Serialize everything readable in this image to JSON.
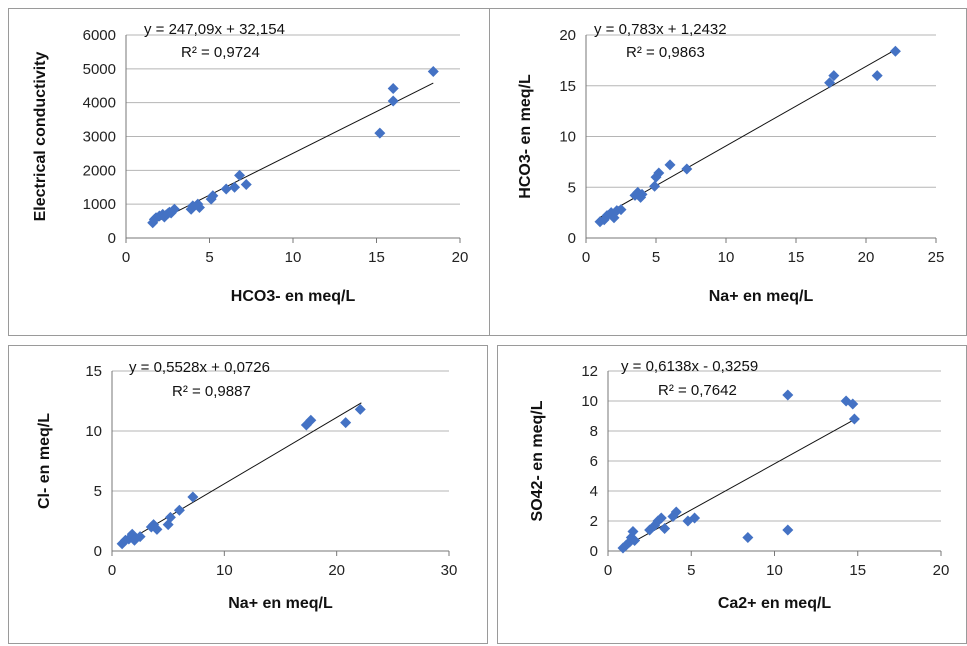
{
  "colors": {
    "marker": "#4472c4",
    "trendline": "#111111",
    "grid": "#b5b5b5"
  },
  "chart_data": [
    {
      "type": "scatter",
      "xlabel": "HCO3- en meq/L",
      "ylabel": "Electrical conductivity",
      "equation": "y = 247,09x + 32,154",
      "r2": "R² = 0,9724",
      "xlim": [
        0,
        20
      ],
      "xticks": [
        0,
        5,
        10,
        15,
        20
      ],
      "ylim": [
        0,
        6000
      ],
      "yticks": [
        0,
        1000,
        2000,
        3000,
        4000,
        5000,
        6000
      ],
      "xtick_labels": [
        "0",
        "5",
        "10",
        "15",
        "20"
      ],
      "ytick_labels": [
        "0",
        "1000",
        "2000",
        "3000",
        "4000",
        "5000",
        "6000"
      ],
      "grid": true,
      "trendline": {
        "slope": 247.09,
        "intercept": 32.154,
        "x_range": [
          1.6,
          18.4
        ]
      },
      "points": [
        [
          1.6,
          450
        ],
        [
          1.7,
          550
        ],
        [
          1.8,
          600
        ],
        [
          2.0,
          650
        ],
        [
          2.2,
          700
        ],
        [
          2.4,
          680
        ],
        [
          2.5,
          720
        ],
        [
          2.6,
          760
        ],
        [
          2.8,
          800
        ],
        [
          2.9,
          850
        ],
        [
          2.3,
          620
        ],
        [
          2.7,
          740
        ],
        [
          3.9,
          850
        ],
        [
          4.0,
          950
        ],
        [
          4.3,
          1000
        ],
        [
          4.4,
          900
        ],
        [
          5.1,
          1150
        ],
        [
          5.2,
          1250
        ],
        [
          6.0,
          1450
        ],
        [
          6.5,
          1500
        ],
        [
          6.8,
          1850
        ],
        [
          7.2,
          1580
        ],
        [
          15.2,
          3100
        ],
        [
          16.0,
          4050
        ],
        [
          16.0,
          4420
        ],
        [
          18.4,
          4920
        ]
      ]
    },
    {
      "type": "scatter",
      "xlabel": "Na+ en meq/L",
      "ylabel": "HCO3- en meq/L",
      "equation": "y = 0,783x + 1,2432",
      "r2": "R² = 0,9863",
      "xlim": [
        0,
        25
      ],
      "xticks": [
        0,
        5,
        10,
        15,
        20,
        25
      ],
      "ylim": [
        0,
        20
      ],
      "yticks": [
        0,
        5,
        10,
        15,
        20
      ],
      "xtick_labels": [
        "0",
        "5",
        "10",
        "15",
        "20",
        "25"
      ],
      "ytick_labels": [
        "0",
        "5",
        "10",
        "15",
        "20"
      ],
      "grid": true,
      "trendline": {
        "slope": 0.783,
        "intercept": 1.2432,
        "x_range": [
          1.0,
          22.2
        ]
      },
      "points": [
        [
          1.0,
          1.6
        ],
        [
          1.3,
          1.8
        ],
        [
          1.5,
          2.2
        ],
        [
          1.8,
          2.5
        ],
        [
          2.0,
          2.0
        ],
        [
          2.2,
          2.7
        ],
        [
          2.5,
          2.8
        ],
        [
          3.5,
          4.2
        ],
        [
          3.7,
          4.5
        ],
        [
          3.9,
          4.0
        ],
        [
          4.0,
          4.3
        ],
        [
          4.9,
          5.1
        ],
        [
          5.0,
          6.0
        ],
        [
          5.2,
          6.4
        ],
        [
          6.0,
          7.2
        ],
        [
          7.2,
          6.8
        ],
        [
          17.4,
          15.3
        ],
        [
          17.7,
          16.0
        ],
        [
          20.8,
          16.0
        ],
        [
          22.1,
          18.4
        ]
      ]
    },
    {
      "type": "scatter",
      "xlabel": "Na+ en meq/L",
      "ylabel": "Cl- en meq/L",
      "equation": "y = 0,5528x + 0,0726",
      "r2": "R² = 0,9887",
      "xlim": [
        0,
        30
      ],
      "xticks": [
        0,
        10,
        20,
        30
      ],
      "ylim": [
        0,
        15
      ],
      "yticks": [
        0,
        5,
        10,
        15
      ],
      "xtick_labels": [
        "0",
        "10",
        "20",
        "30"
      ],
      "ytick_labels": [
        "0",
        "5",
        "10",
        "15"
      ],
      "grid": true,
      "trendline": {
        "slope": 0.5528,
        "intercept": 0.0726,
        "x_range": [
          0.8,
          22.2
        ]
      },
      "points": [
        [
          0.9,
          0.6
        ],
        [
          1.2,
          0.9
        ],
        [
          1.5,
          1.0
        ],
        [
          1.8,
          1.4
        ],
        [
          2.0,
          0.9
        ],
        [
          2.5,
          1.2
        ],
        [
          3.5,
          2.0
        ],
        [
          3.7,
          2.2
        ],
        [
          4.0,
          1.8
        ],
        [
          5.0,
          2.2
        ],
        [
          5.2,
          2.8
        ],
        [
          6.0,
          3.4
        ],
        [
          7.2,
          4.5
        ],
        [
          17.3,
          10.5
        ],
        [
          17.7,
          10.9
        ],
        [
          20.8,
          10.7
        ],
        [
          22.1,
          11.8
        ]
      ]
    },
    {
      "type": "scatter",
      "xlabel": "Ca2+ en meq/L",
      "ylabel": "SO42- en meq/L",
      "equation": "y = 0,6138x - 0,3259",
      "r2": "R² = 0,7642",
      "xlim": [
        0,
        20
      ],
      "xticks": [
        0,
        5,
        10,
        15,
        20
      ],
      "ylim": [
        0,
        12
      ],
      "yticks": [
        0,
        2,
        4,
        6,
        8,
        10,
        12
      ],
      "xtick_labels": [
        "0",
        "5",
        "10",
        "15",
        "20"
      ],
      "ytick_labels": [
        "0",
        "2",
        "4",
        "6",
        "8",
        "10",
        "12"
      ],
      "grid": true,
      "trendline": {
        "slope": 0.6138,
        "intercept": -0.3259,
        "x_range": [
          1.0,
          14.8
        ]
      },
      "points": [
        [
          0.9,
          0.2
        ],
        [
          1.1,
          0.4
        ],
        [
          1.3,
          0.6
        ],
        [
          1.4,
          0.9
        ],
        [
          1.5,
          1.3
        ],
        [
          1.6,
          0.7
        ],
        [
          2.5,
          1.4
        ],
        [
          2.8,
          1.7
        ],
        [
          3.0,
          2.0
        ],
        [
          3.2,
          2.2
        ],
        [
          3.4,
          1.5
        ],
        [
          3.9,
          2.3
        ],
        [
          4.1,
          2.6
        ],
        [
          4.8,
          2.0
        ],
        [
          5.2,
          2.2
        ],
        [
          8.4,
          0.9
        ],
        [
          10.8,
          1.4
        ],
        [
          10.8,
          10.4
        ],
        [
          14.3,
          10.0
        ],
        [
          14.7,
          9.8
        ],
        [
          14.8,
          8.8
        ]
      ]
    }
  ]
}
